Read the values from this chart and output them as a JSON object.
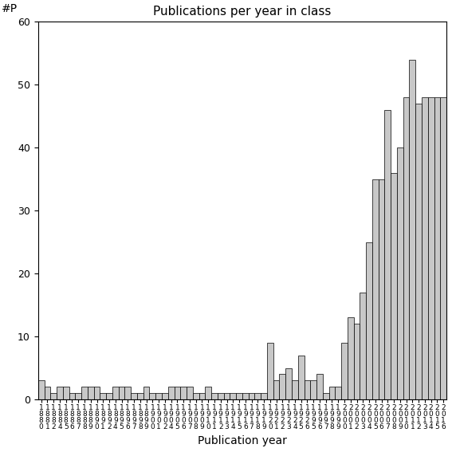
{
  "title": "Publications per year in class",
  "xlabel": "Publication year",
  "ylabel": "#P",
  "ylim": [
    0,
    60
  ],
  "yticks": [
    0,
    10,
    20,
    30,
    40,
    50,
    60
  ],
  "bar_color": "#c8c8c8",
  "bar_edge_color": "#000000",
  "bar_edge_width": 0.5,
  "years": [
    1880,
    1881,
    1882,
    1884,
    1885,
    1886,
    1887,
    1888,
    1889,
    1890,
    1891,
    1892,
    1894,
    1895,
    1896,
    1897,
    1898,
    1899,
    1900,
    1901,
    1902,
    1904,
    1905,
    1906,
    1907,
    1908,
    1909,
    1910,
    1911,
    1912,
    1913,
    1914,
    1915,
    1916,
    1917,
    1918,
    1919,
    1920,
    1921,
    1922,
    1923,
    1924,
    1925,
    1926,
    1995,
    1996,
    1997,
    1998,
    1999,
    2000,
    2001,
    2002,
    2003,
    2004,
    2005,
    2006,
    2007,
    2008,
    2009,
    2010,
    2011,
    2012,
    2013,
    2014,
    2015,
    2016
  ],
  "values": [
    3,
    2,
    1,
    2,
    2,
    1,
    1,
    2,
    2,
    2,
    1,
    1,
    2,
    2,
    2,
    1,
    1,
    2,
    1,
    1,
    1,
    2,
    2,
    2,
    2,
    1,
    1,
    2,
    1,
    1,
    1,
    1,
    1,
    1,
    1,
    1,
    1,
    9,
    3,
    4,
    5,
    3,
    7,
    3,
    3,
    4,
    1,
    2,
    2,
    9,
    13,
    12,
    17,
    25,
    35,
    35,
    46,
    36,
    40,
    48,
    54,
    47,
    48,
    48,
    48,
    48
  ]
}
